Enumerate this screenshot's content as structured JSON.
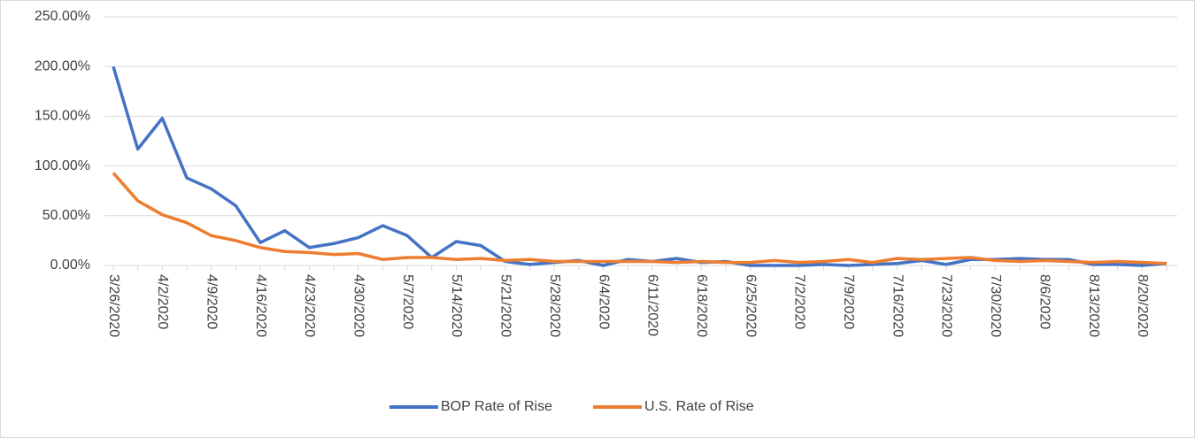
{
  "chart_data": {
    "type": "line",
    "categories": [
      "3/26/2020",
      null,
      "4/2/2020",
      null,
      "4/9/2020",
      null,
      "4/16/2020",
      null,
      "4/23/2020",
      null,
      "4/30/2020",
      null,
      "5/7/2020",
      null,
      "5/14/2020",
      null,
      "5/21/2020",
      null,
      "5/28/2020",
      null,
      "6/4/2020",
      null,
      "6/11/2020",
      null,
      "6/18/2020",
      null,
      "6/25/2020",
      null,
      "7/2/2020",
      null,
      "7/9/2020",
      null,
      "7/16/2020",
      null,
      "7/23/2020",
      null,
      "7/30/2020",
      null,
      "8/6/2020",
      null,
      "8/13/2020",
      null,
      "8/20/2020",
      null
    ],
    "series": [
      {
        "name": "BOP Rate of Rise",
        "color": "#4472c4",
        "values": [
          200,
          117,
          148,
          88,
          77,
          60,
          23,
          35,
          18,
          22,
          28,
          40,
          30,
          8,
          24,
          20,
          4,
          1,
          3,
          5,
          0,
          6,
          4,
          7,
          3,
          4,
          0,
          0,
          0,
          1,
          0,
          1,
          2,
          5,
          1,
          6,
          6,
          7,
          6,
          6,
          1,
          1,
          0,
          2
        ]
      },
      {
        "name": "U.S. Rate of Rise",
        "color": "#ed7d31",
        "values": [
          93,
          65,
          51,
          43,
          30,
          25,
          18,
          14,
          13,
          11,
          12,
          6,
          8,
          8,
          6,
          7,
          5,
          6,
          4,
          4,
          4,
          4,
          4,
          3,
          4,
          3,
          3,
          5,
          3,
          4,
          6,
          3,
          7,
          6,
          7,
          8,
          5,
          4,
          5,
          4,
          3,
          4,
          3,
          2
        ]
      }
    ],
    "ylim": [
      0,
      250
    ],
    "yticks": [
      {
        "value": 0,
        "label": "0.00%"
      },
      {
        "value": 50,
        "label": "50.00%"
      },
      {
        "value": 100,
        "label": "100.00%"
      },
      {
        "value": 150,
        "label": "150.00%"
      },
      {
        "value": 200,
        "label": "200.00%"
      },
      {
        "value": 250,
        "label": "250.00%"
      }
    ],
    "grid": true,
    "legend": "bottom"
  }
}
